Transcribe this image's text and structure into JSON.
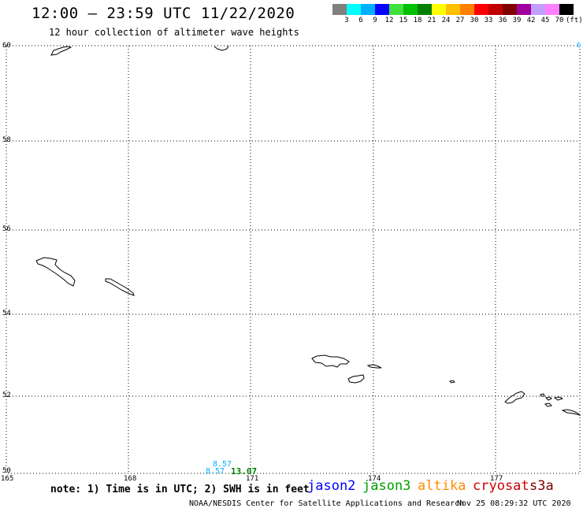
{
  "title": "12:00 – 23:59 UTC 11/22/2020",
  "subtitle": "12 hour collection of altimeter wave heights",
  "colorbar": {
    "colors": [
      "#808080",
      "#00ffff",
      "#00b0ff",
      "#0000ff",
      "#40e040",
      "#00c000",
      "#008000",
      "#ffff00",
      "#ffc000",
      "#ff8000",
      "#ff0000",
      "#c00000",
      "#800000",
      "#a000a0",
      "#c0a0ff",
      "#ff80ff",
      "#000000"
    ],
    "labels": [
      "3",
      "6",
      "9",
      "12",
      "15",
      "18",
      "21",
      "24",
      "27",
      "30",
      "33",
      "36",
      "39",
      "42",
      "45",
      "70"
    ],
    "unit": "(ft)"
  },
  "map": {
    "lat_labels": [
      "60",
      "58",
      "56",
      "54",
      "52",
      "50"
    ],
    "lon_labels": [
      "165",
      "168",
      "171",
      "174",
      "177"
    ],
    "right_edge_label": "6"
  },
  "observations": [
    {
      "text": "8.57",
      "color": "#00b0ff"
    },
    {
      "text": "8.57",
      "color": "#00b0ff"
    },
    {
      "text": "13.07",
      "color": "#008000"
    }
  ],
  "note": "note: 1) Time is in UTC; 2) SWH is in feet",
  "satellites": [
    {
      "name": "jason2",
      "color": "#0000ff"
    },
    {
      "name": "jason3",
      "color": "#00a000"
    },
    {
      "name": "altika",
      "color": "#ff8c00"
    },
    {
      "name": "cryosat",
      "color": "#cc0000"
    },
    {
      "name": "s3a",
      "color": "#800000"
    }
  ],
  "footer": "NOAA/NESDIS Center for Satellite Applications and Research",
  "footer_date": "Nov 25 08:29:32 UTC 2020"
}
